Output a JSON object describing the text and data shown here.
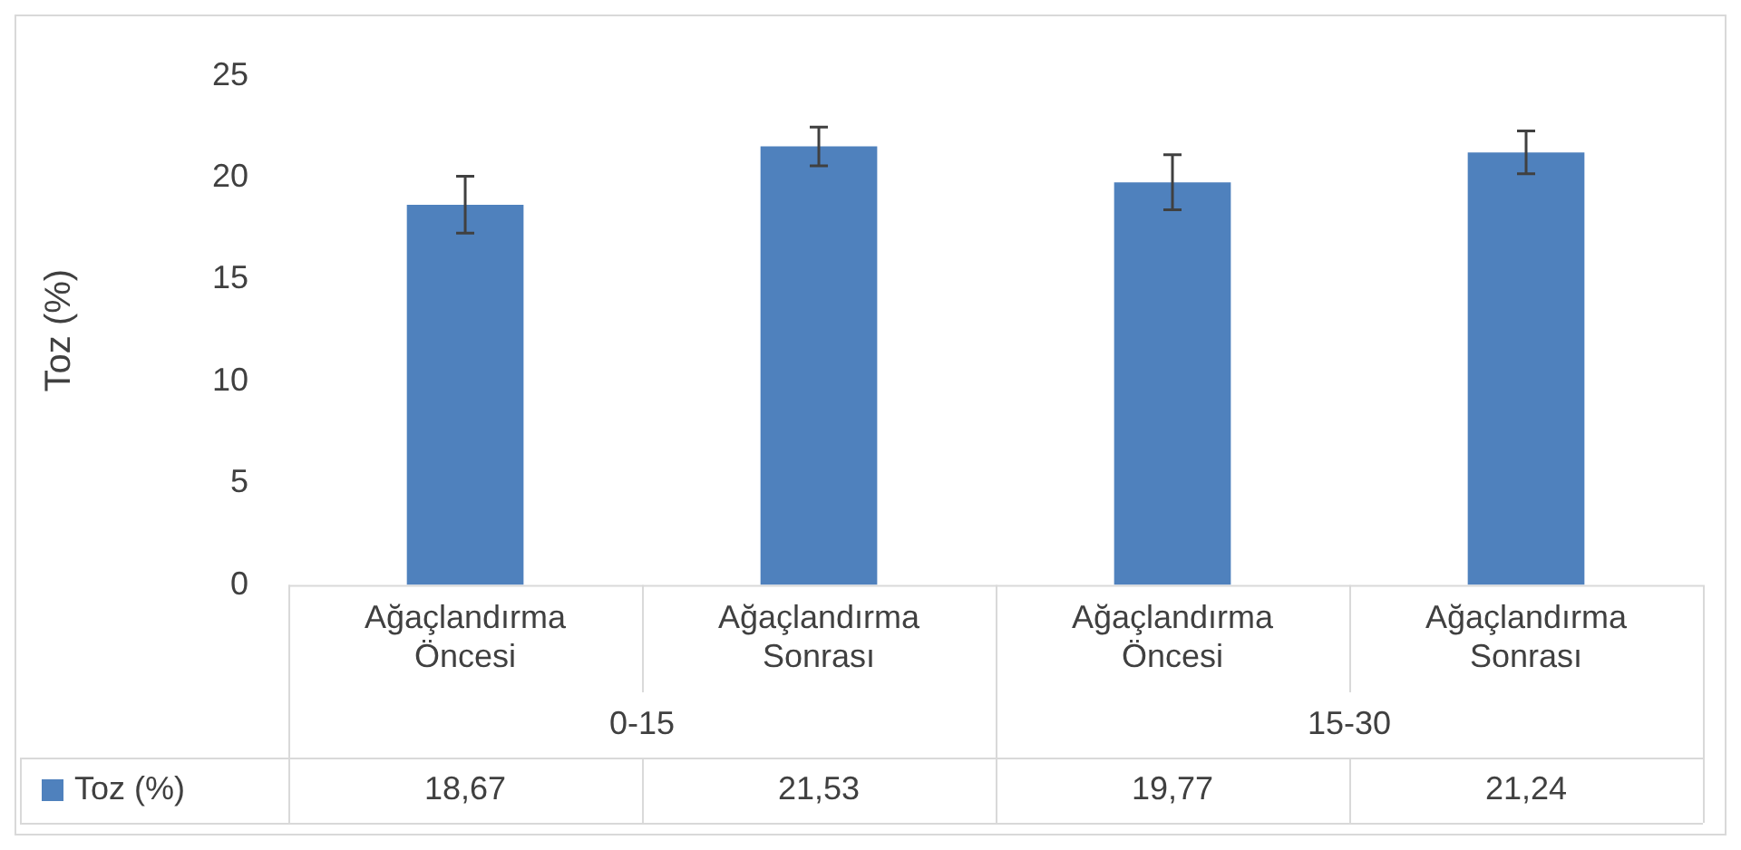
{
  "chart_data": {
    "type": "bar",
    "ylabel": "Toz (%)",
    "categories": [
      "Ağaçlandırma Öncesi",
      "Ağaçlandırma Sonrası",
      "Ağaçlandırma Öncesi",
      "Ağaçlandırma Sonrası"
    ],
    "annotations": [
      "0-15",
      "15-30"
    ],
    "series": [
      {
        "name": "Toz (%)",
        "color": "#4f81bd",
        "values": [
          18.67,
          21.53,
          19.77,
          21.24
        ],
        "errors": [
          1.4,
          0.95,
          1.35,
          1.05
        ],
        "value_labels": [
          "18,67",
          "21,53",
          "19,77",
          "21,24"
        ]
      }
    ],
    "ylim": [
      0,
      25
    ],
    "yticks": [
      0,
      5,
      10,
      15,
      20,
      25
    ],
    "grid": false,
    "legend": "bottom"
  }
}
